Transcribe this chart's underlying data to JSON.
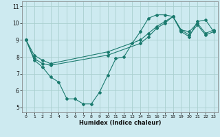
{
  "xlabel": "Humidex (Indice chaleur)",
  "bg_color": "#cdeaf0",
  "grid_color": "#aacfcf",
  "line_color": "#1a7a6e",
  "xlim": [
    -0.5,
    23.5
  ],
  "ylim": [
    4.7,
    11.3
  ],
  "yticks": [
    5,
    6,
    7,
    8,
    9,
    10,
    11
  ],
  "xticks": [
    0,
    1,
    2,
    3,
    4,
    5,
    6,
    7,
    8,
    9,
    10,
    11,
    12,
    13,
    14,
    15,
    16,
    17,
    18,
    19,
    20,
    21,
    22,
    23
  ],
  "line1_x": [
    0,
    1,
    2,
    3,
    4,
    5,
    6,
    7,
    8,
    9,
    10,
    11,
    12,
    13,
    14,
    15,
    16,
    17,
    18,
    19,
    20,
    21,
    22,
    23
  ],
  "line1_y": [
    9.0,
    7.8,
    7.4,
    6.8,
    6.5,
    5.5,
    5.5,
    5.2,
    5.2,
    5.9,
    6.9,
    7.9,
    8.0,
    8.8,
    9.5,
    10.3,
    10.5,
    10.5,
    10.4,
    9.5,
    9.2,
    10.1,
    10.2,
    9.5
  ],
  "line2_x": [
    0,
    1,
    2,
    3,
    10,
    14,
    15,
    16,
    17,
    18,
    19,
    20,
    21,
    22,
    23
  ],
  "line2_y": [
    9.0,
    7.9,
    7.6,
    7.5,
    8.1,
    8.8,
    9.2,
    9.7,
    10.0,
    10.4,
    9.6,
    9.3,
    9.9,
    9.3,
    9.5
  ],
  "line3_x": [
    0,
    1,
    2,
    3,
    10,
    14,
    15,
    16,
    17,
    18,
    19,
    20,
    21,
    22,
    23
  ],
  "line3_y": [
    9.0,
    8.1,
    7.8,
    7.6,
    8.3,
    9.0,
    9.4,
    9.8,
    10.1,
    10.4,
    9.6,
    9.5,
    10.0,
    9.4,
    9.6
  ]
}
